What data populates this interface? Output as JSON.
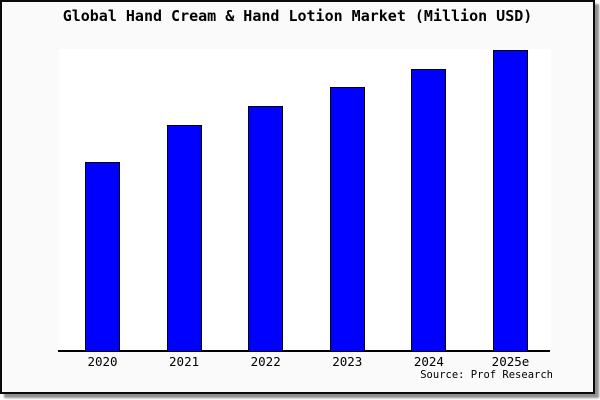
{
  "chart_data": {
    "type": "bar",
    "title": "Global Hand Cream & Hand Lotion Market (Million USD)",
    "categories": [
      "2020",
      "2021",
      "2022",
      "2023",
      "2024",
      "2025e"
    ],
    "values": [
      62.9,
      75.2,
      81.5,
      87.7,
      93.7,
      100
    ],
    "values_unit": "percent of tallest (2025e) bar; y-axis shows no tick labels or gridlines",
    "ylim": [
      0,
      100
    ],
    "xlabel": "",
    "ylabel": "",
    "grid": false,
    "legend_position": "none",
    "bar_color": "#0000ff",
    "bar_border_color": "#000000",
    "plot_background": "#ffffff",
    "canvas_background": "#fafafa",
    "annotations": [
      "Source: Prof Research"
    ]
  }
}
